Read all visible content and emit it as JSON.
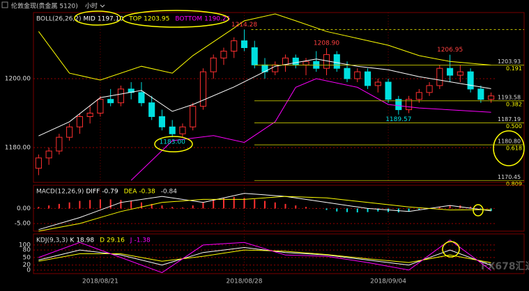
{
  "watermark": "FX678汇通网",
  "chart_data": [
    {
      "type": "candlestick",
      "title": "伦敦金现(贵金属 5120)",
      "period": "小时",
      "indicator": "BOLL(26,26,2)",
      "up_color": "#ff3030",
      "down_color": "#00e0e0",
      "xlim": [
        -0.5,
        44.5
      ],
      "xticks": [
        {
          "value": 6,
          "label": "2018/08/21"
        },
        {
          "value": 20,
          "label": "2018/08/28"
        },
        {
          "value": 34,
          "label": "2018/09/04"
        }
      ],
      "ylim": [
        1169.9,
        1219.2
      ],
      "yticks": [
        {
          "value": 1200,
          "label": "1200.00"
        },
        {
          "value": 1180,
          "label": "1180.00"
        }
      ],
      "grid": true,
      "ohlc": [
        [
          1174,
          1178,
          1172,
          1177
        ],
        [
          1177,
          1180,
          1175,
          1179
        ],
        [
          1179,
          1184,
          1178,
          1183
        ],
        [
          1183,
          1187,
          1182,
          1186
        ],
        [
          1186,
          1190,
          1184,
          1189
        ],
        [
          1189,
          1192,
          1187,
          1190
        ],
        [
          1190,
          1195,
          1189,
          1194
        ],
        [
          1194,
          1197,
          1192,
          1193
        ],
        [
          1193,
          1198,
          1192,
          1197
        ],
        [
          1197,
          1199,
          1194,
          1196
        ],
        [
          1196,
          1199,
          1192,
          1193
        ],
        [
          1193,
          1195,
          1188,
          1189
        ],
        [
          1189,
          1191,
          1185,
          1186
        ],
        [
          1186,
          1188,
          1183,
          1184
        ],
        [
          1184,
          1187,
          1183,
          1186
        ],
        [
          1186,
          1193,
          1185,
          1192
        ],
        [
          1192,
          1203,
          1191,
          1202
        ],
        [
          1202,
          1207,
          1200,
          1206
        ],
        [
          1206,
          1209,
          1204,
          1208
        ],
        [
          1208,
          1212,
          1206,
          1211
        ],
        [
          1211,
          1214.28,
          1208,
          1209
        ],
        [
          1209,
          1211,
          1203,
          1204
        ],
        [
          1204,
          1206,
          1200,
          1202
        ],
        [
          1202,
          1205,
          1201,
          1204
        ],
        [
          1204,
          1207,
          1202,
          1206
        ],
        [
          1206,
          1207,
          1203,
          1204
        ],
        [
          1204,
          1206,
          1201,
          1205
        ],
        [
          1205,
          1208,
          1202,
          1203
        ],
        [
          1203,
          1208.9,
          1201,
          1207
        ],
        [
          1207,
          1208,
          1202,
          1203
        ],
        [
          1203,
          1205,
          1199,
          1200
        ],
        [
          1200,
          1203,
          1199,
          1202
        ],
        [
          1202,
          1203,
          1197,
          1198
        ],
        [
          1198,
          1200,
          1196,
          1199
        ],
        [
          1199,
          1200,
          1193,
          1194
        ],
        [
          1194,
          1195,
          1189.57,
          1191
        ],
        [
          1191,
          1195,
          1190,
          1194
        ],
        [
          1194,
          1197,
          1193,
          1196
        ],
        [
          1196,
          1199,
          1195,
          1198
        ],
        [
          1198,
          1204,
          1197,
          1203
        ],
        [
          1203,
          1206.95,
          1199,
          1201
        ],
        [
          1201,
          1204,
          1199,
          1202
        ],
        [
          1202,
          1203,
          1196,
          1197
        ],
        [
          1197,
          1198,
          1193,
          1194
        ],
        [
          1194,
          1196,
          1193,
          1195
        ]
      ],
      "series": [
        {
          "name": "MID",
          "color": "#ffffff",
          "current": {
            "value": 1197.1,
            "label": "1197.10"
          },
          "x": [
            0,
            3,
            6,
            10,
            13,
            15,
            19,
            23,
            27,
            31,
            34,
            37,
            44
          ],
          "values": [
            1183.4,
            1187.5,
            1194.5,
            1196.6,
            1190.5,
            1192.5,
            1197.6,
            1203.6,
            1205.7,
            1203.6,
            1202.6,
            1200.6,
            1197.1
          ]
        },
        {
          "name": "TOP",
          "color": "#ffff00",
          "current": 1203.95,
          "x": [
            0,
            3,
            6,
            10,
            13,
            15,
            19,
            20,
            23,
            25,
            28,
            31,
            34,
            37,
            40,
            44
          ],
          "values": [
            1213.7,
            1201.6,
            1199.6,
            1203.6,
            1201.6,
            1206.7,
            1214.7,
            1216.8,
            1218.8,
            1216.8,
            1213.7,
            1211.7,
            1209.7,
            1206.7,
            1205,
            1203.95
          ]
        },
        {
          "name": "BOTTOM",
          "color": "#ff00ff",
          "current": 1190.25,
          "x": [
            9,
            13,
            17,
            20,
            23,
            25,
            27,
            31,
            34,
            37,
            44
          ],
          "values": [
            1170.5,
            1182,
            1183.5,
            1181.5,
            1187.5,
            1197.5,
            1200,
            1197.5,
            1192.5,
            1191.5,
            1190.25
          ]
        }
      ],
      "levels": [
        {
          "price": 1203.93,
          "ratio": 0.191
        },
        {
          "price": 1193.58,
          "ratio": 0.382
        },
        {
          "price": 1187.19,
          "ratio": {
            "value": 0.5,
            "label": "0.500"
          }
        },
        {
          "price": {
            "value": 1180.8,
            "label": "1180.80"
          },
          "ratio": 0.618
        },
        {
          "price": 1170.45,
          "ratio": 0.809
        }
      ],
      "annotations": [
        {
          "x": 20,
          "value": 1214.28
        },
        {
          "x": 28,
          "value": {
            "value": 1208.9,
            "label": "1208.90"
          }
        },
        {
          "x": 40,
          "value": 1206.95
        },
        {
          "x": 35,
          "value": 1189.57
        },
        {
          "x": 13,
          "value": {
            "value": 1183,
            "label": "1183.00"
          }
        }
      ]
    },
    {
      "type": "bar",
      "indicator": "MACD(12,26,9)",
      "up_color": "#ff3030",
      "down_color": "#00e0e0",
      "ylim": [
        -7.5,
        7.7
      ],
      "yticks": [
        {
          "value": 0,
          "label": "0.00"
        },
        {
          "value": -5,
          "label": "-5.00"
        }
      ],
      "grid": true,
      "values": [
        0.5,
        1,
        1.5,
        2,
        2.5,
        2.8,
        3,
        3,
        2.8,
        2.5,
        2,
        1.5,
        1,
        0.5,
        0.3,
        1,
        2,
        3,
        3.5,
        3.8,
        3.5,
        3,
        2.5,
        2,
        1.5,
        1,
        0.5,
        0,
        -0.5,
        -1,
        -1.2,
        -1.3,
        -1.2,
        -1,
        -1.2,
        -1.3,
        -1,
        -0.5,
        0,
        0.5,
        1,
        1,
        0.6,
        -0.2,
        -0.84
      ],
      "current": -0.84,
      "series": [
        {
          "name": "DIFF",
          "color": "#ffffff",
          "current": -0.79,
          "x": [
            0,
            4,
            8,
            12,
            16,
            20,
            24,
            28,
            32,
            36,
            40,
            44
          ],
          "values": [
            -7,
            -3,
            2,
            4,
            2,
            5,
            4,
            2,
            0,
            -1,
            1,
            -0.79
          ]
        },
        {
          "name": "DEA",
          "color": "#ffff00",
          "current": -0.38,
          "x": [
            0,
            4,
            8,
            12,
            16,
            20,
            24,
            28,
            32,
            36,
            40,
            44
          ],
          "values": [
            -7.5,
            -5,
            -1,
            2,
            3,
            3,
            4,
            3.5,
            2,
            0.5,
            -0.5,
            -0.38
          ]
        }
      ]
    },
    {
      "type": "line",
      "indicator": "KDJ(9,3,3)",
      "ylim": [
        -14,
        144
      ],
      "yticks": [
        100,
        80,
        50,
        20,
        0
      ],
      "grid": true,
      "series": [
        {
          "name": "K",
          "color": "#ffffff",
          "current": 18.98,
          "x": [
            0,
            4,
            8,
            12,
            16,
            20,
            24,
            28,
            32,
            36,
            40,
            44
          ],
          "values": [
            40,
            80,
            60,
            20,
            70,
            90,
            70,
            60,
            40,
            20,
            80,
            18.98
          ]
        },
        {
          "name": "D",
          "color": "#ffff00",
          "current": 29.16,
          "x": [
            0,
            4,
            8,
            12,
            16,
            20,
            24,
            28,
            32,
            36,
            40,
            44
          ],
          "values": [
            35,
            65,
            65,
            35,
            55,
            80,
            75,
            62,
            45,
            30,
            60,
            29.16
          ]
        },
        {
          "name": "J",
          "color": "#ff00ff",
          "current": -1.38,
          "x": [
            0,
            4,
            8,
            12,
            16,
            20,
            24,
            28,
            32,
            36,
            40,
            44
          ],
          "values": [
            50,
            110,
            50,
            -10,
            100,
            110,
            60,
            55,
            30,
            0,
            120,
            -1.38
          ]
        }
      ]
    }
  ]
}
